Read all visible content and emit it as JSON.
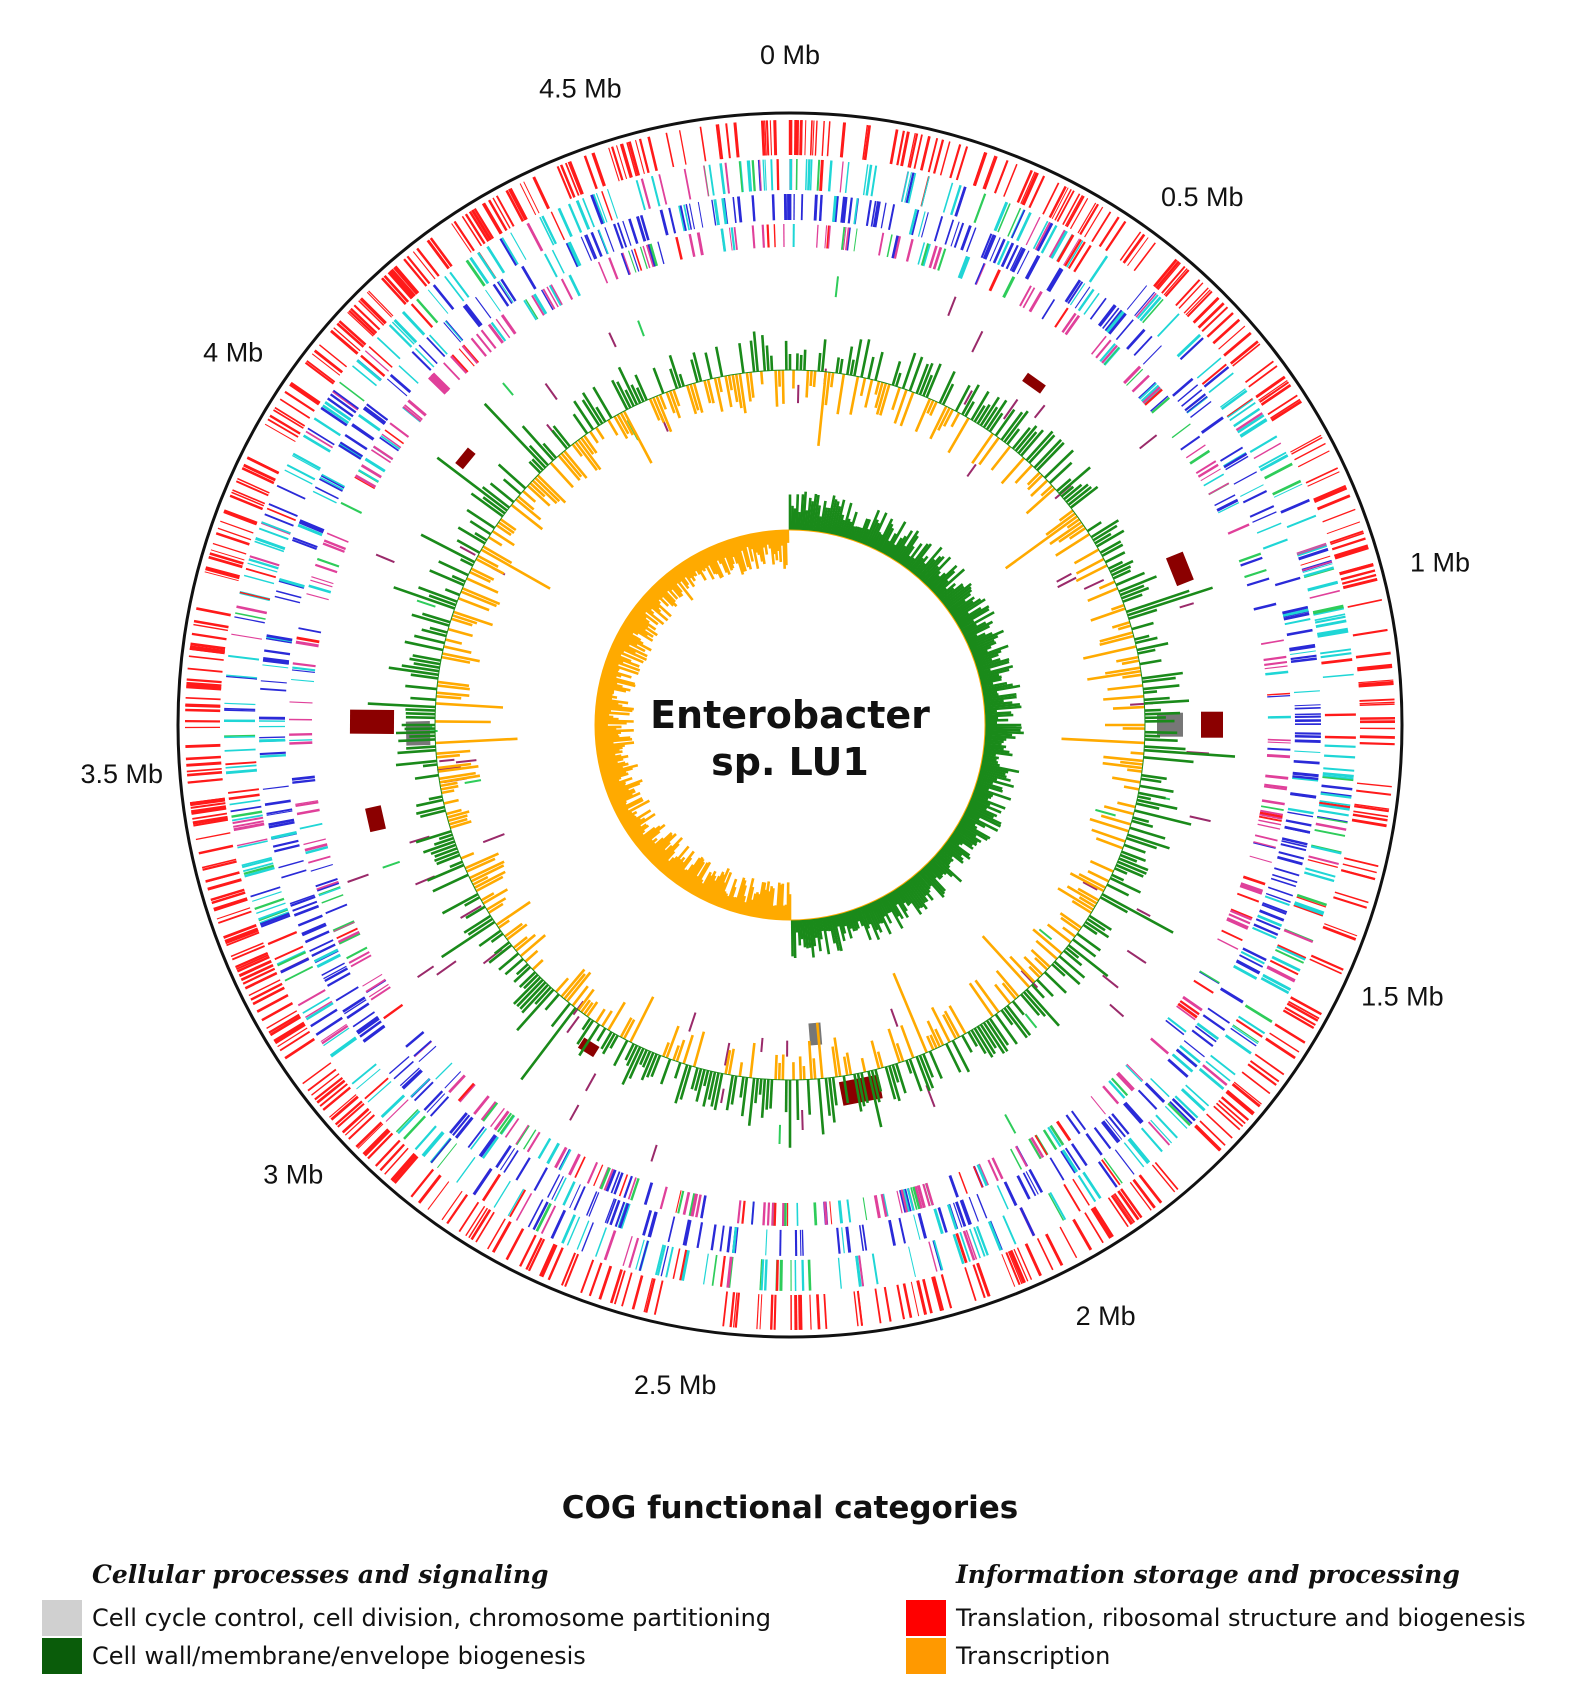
{
  "figure": {
    "center_label_line1": "Enterobacter",
    "center_label_line2": "sp. LU1",
    "scale_labels": [
      "0 Mb",
      "0.5 Mb",
      "1 Mb",
      "1.5 Mb",
      "2 Mb",
      "2.5 Mb",
      "3 Mb",
      "3.5 Mb",
      "4 Mb",
      "4.5 Mb"
    ],
    "scale_values_mb": [
      0,
      0.5,
      1,
      1.5,
      2,
      2.5,
      3,
      3.5,
      4,
      4.5
    ],
    "genome_length_mb": 4.74,
    "colors": {
      "outer_ring": "#111111",
      "cds_translation": "#ff1a1a",
      "cds_blue": "#2a2ad8",
      "cds_cyan": "#1fd6d6",
      "cds_magenta": "#e0409a",
      "cds_green": "#2ecc5a",
      "gc_content_positive": "#1a8a1a",
      "gc_content_negative": "#ffaa00",
      "feature_darkred": "#8b0000",
      "feature_gray": "#777777"
    }
  },
  "legend": {
    "title": "COG functional categories",
    "groups": [
      {
        "heading": "Cellular processes and signaling",
        "items": [
          {
            "label": "Cell cycle control, cell division, chromosome partitioning",
            "color": "#d0d0d0"
          },
          {
            "label": "Cell wall/membrane/envelope biogenesis",
            "color": "#0a5c0a"
          }
        ]
      },
      {
        "heading": "Information storage and processing",
        "items": [
          {
            "label": "Translation, ribosomal structure and biogenesis",
            "color": "#ff0000"
          },
          {
            "label": "Transcription",
            "color": "#ff9900"
          }
        ]
      }
    ]
  }
}
